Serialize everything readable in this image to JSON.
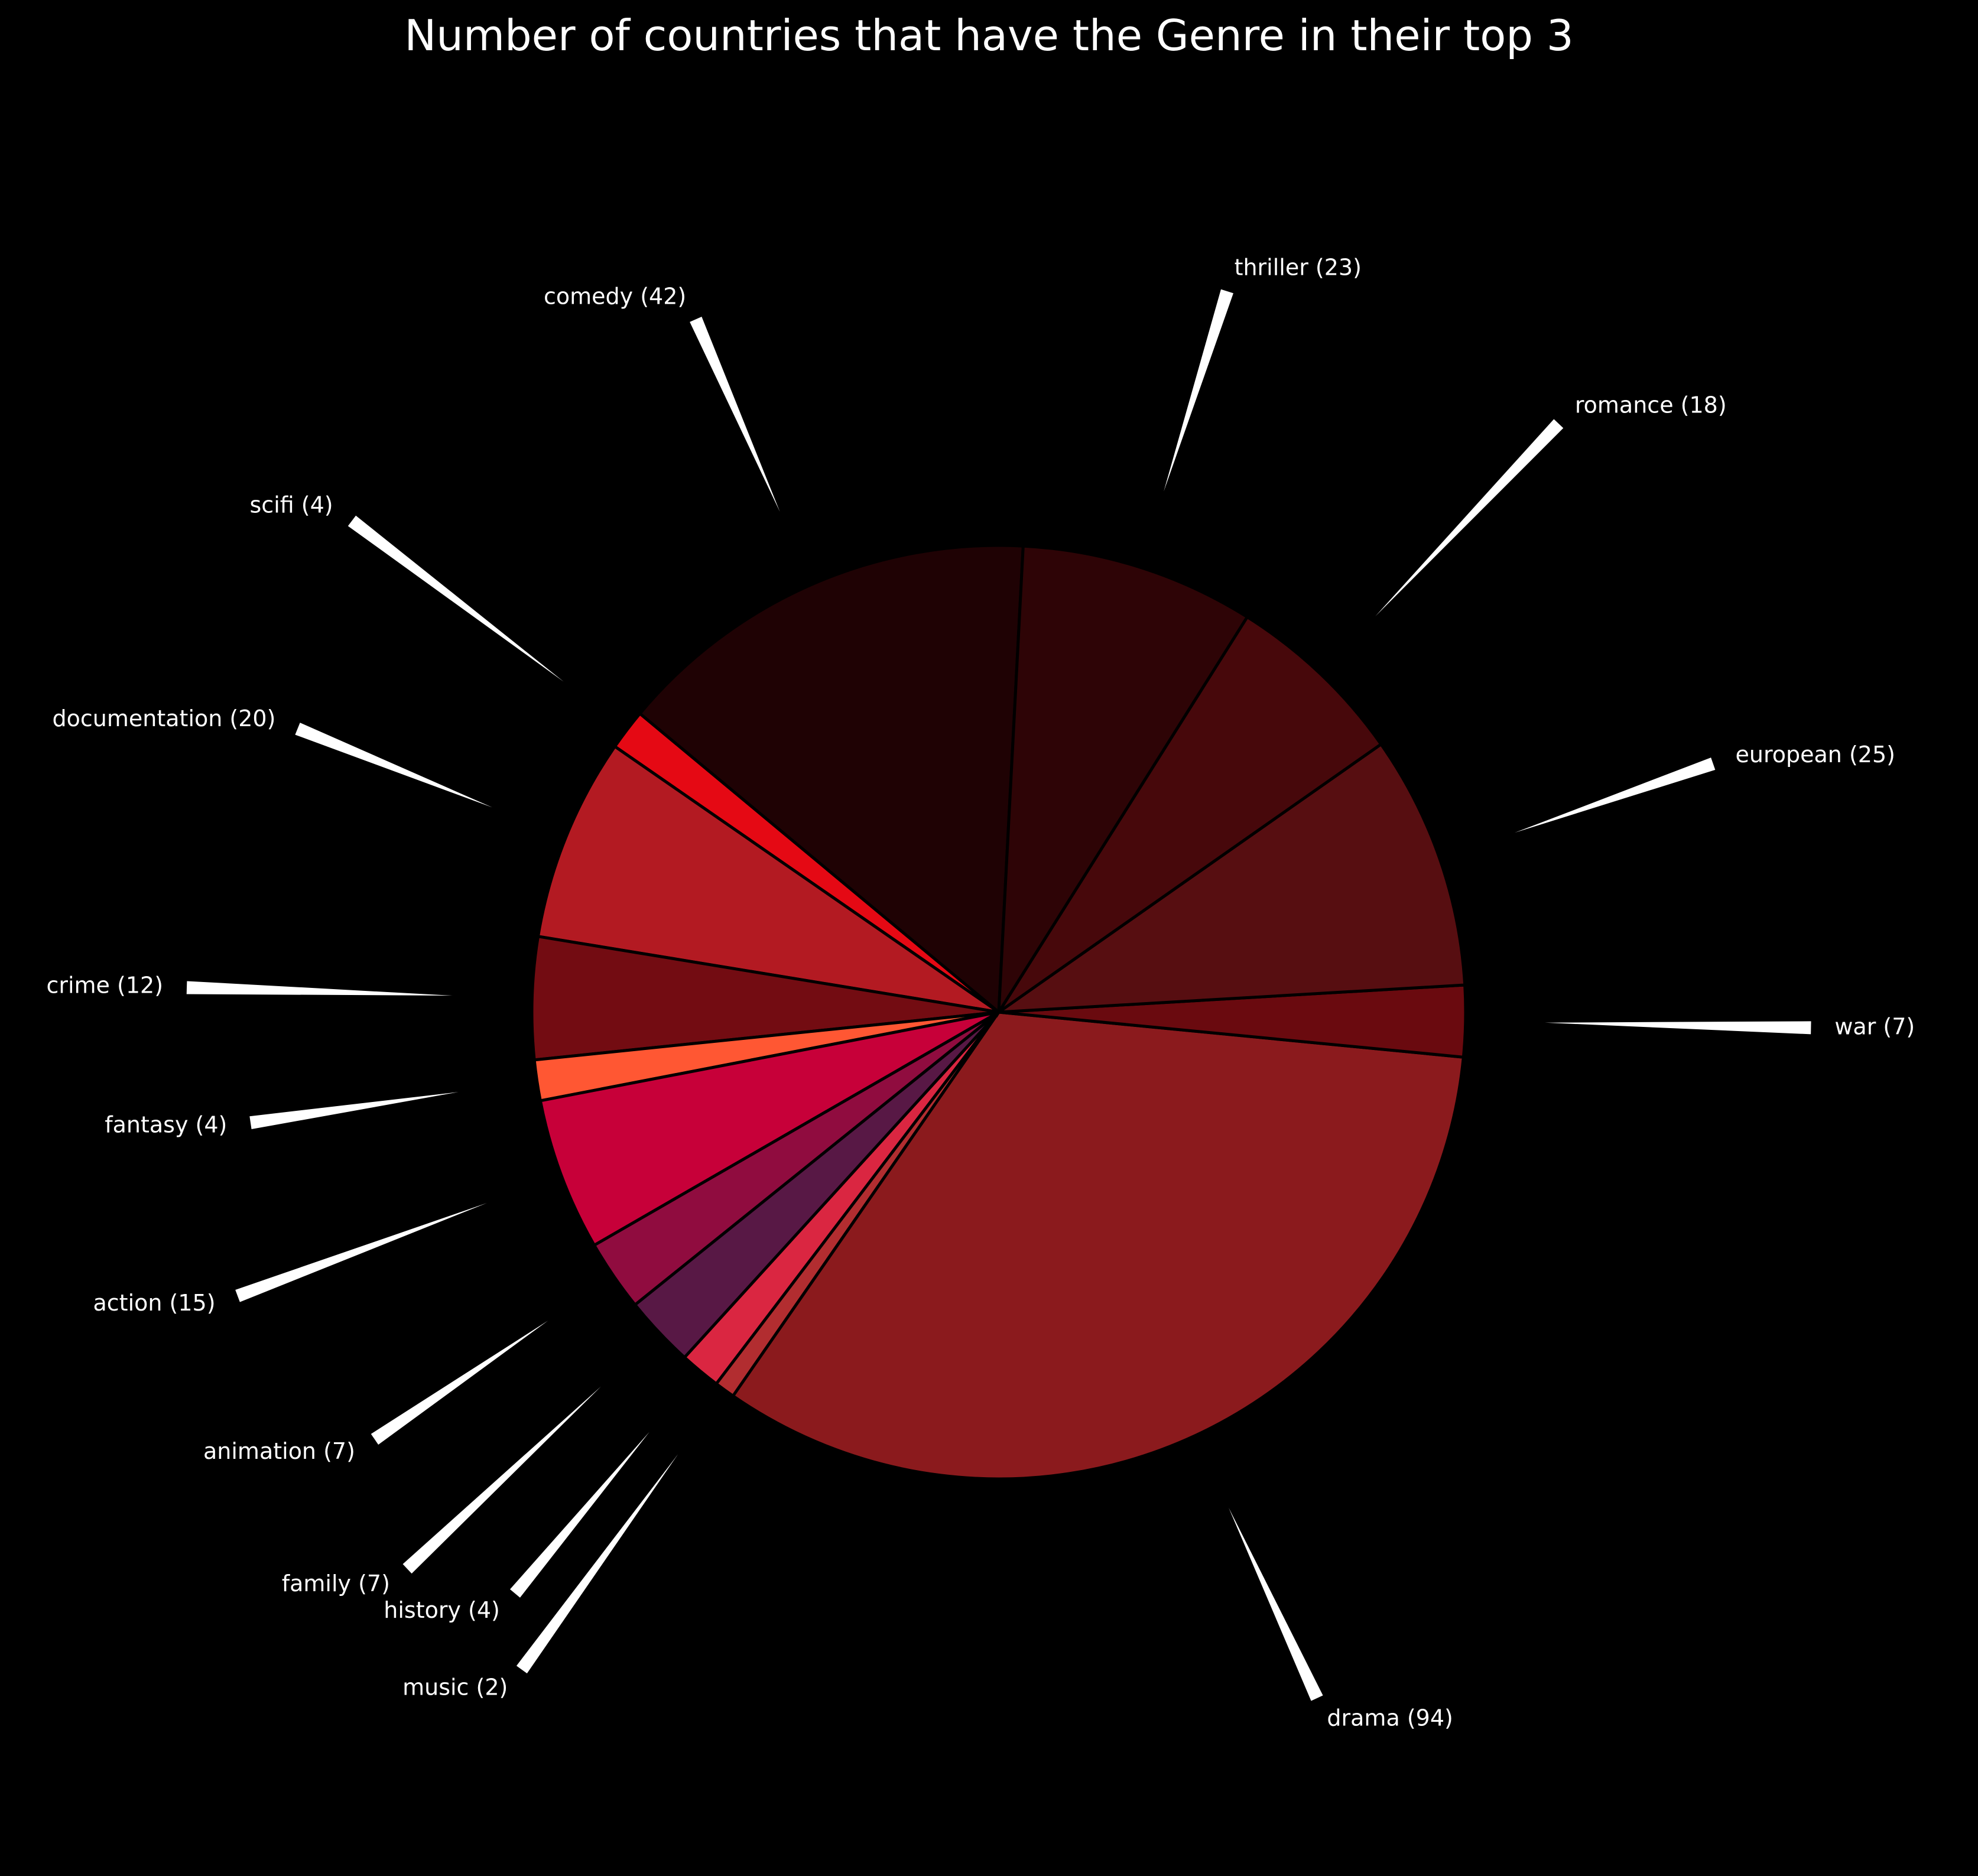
{
  "chart_data": {
    "type": "pie",
    "title": "Number of countries that have the Genre in their top 3",
    "series": [
      {
        "name": "comedy",
        "value": 42,
        "label": "comedy (42)",
        "color": "#1f0204"
      },
      {
        "name": "scifi",
        "value": 4,
        "label": "scifi (4)",
        "color": "#e50914"
      },
      {
        "name": "documentation",
        "value": 20,
        "label": "documentation (20)",
        "color": "#b31a22"
      },
      {
        "name": "crime",
        "value": 12,
        "label": "crime (12)",
        "color": "#730c12"
      },
      {
        "name": "fantasy",
        "value": 4,
        "label": "fantasy (4)",
        "color": "#ff5733"
      },
      {
        "name": "action",
        "value": 15,
        "label": "action (15)",
        "color": "#c70039"
      },
      {
        "name": "animation",
        "value": 7,
        "label": "animation (7)",
        "color": "#900c3f"
      },
      {
        "name": "family",
        "value": 7,
        "label": "family (7)",
        "color": "#581845"
      },
      {
        "name": "history",
        "value": 4,
        "label": "history (4)",
        "color": "#da2641"
      },
      {
        "name": "music",
        "value": 2,
        "label": "music (2)",
        "color": "#b22d30"
      },
      {
        "name": "drama",
        "value": 94,
        "label": "drama (94)",
        "color": "#8b1a1d"
      },
      {
        "name": "war",
        "value": 7,
        "label": "war (7)",
        "color": "#6a0a0f"
      },
      {
        "name": "european",
        "value": 25,
        "label": "european (25)",
        "color": "#570e11"
      },
      {
        "name": "romance",
        "value": 18,
        "label": "romance (18)",
        "color": "#47080b"
      },
      {
        "name": "thriller",
        "value": 23,
        "label": "thriller (23)",
        "color": "#2e0406"
      }
    ],
    "legend": "none"
  }
}
